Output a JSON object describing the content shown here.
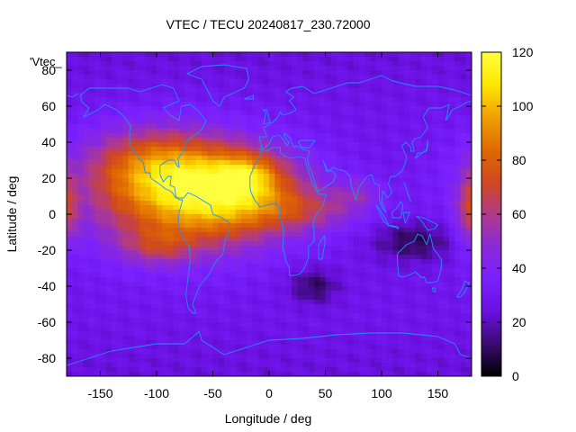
{
  "chart_data": {
    "type": "heatmap",
    "title": "VTEC / TECU 20240817_230.72000",
    "xlabel": "Longitude / deg",
    "ylabel": "Latitude / deg",
    "key_label": "'Vtec_",
    "xlim": [
      -180,
      180
    ],
    "ylim": [
      -90,
      90
    ],
    "xticks": [
      -150,
      -100,
      -50,
      0,
      50,
      100,
      150
    ],
    "yticks": [
      -80,
      -60,
      -40,
      -20,
      0,
      20,
      40,
      60,
      80
    ],
    "colorbar": {
      "range": [
        0,
        120
      ],
      "ticks": [
        0,
        20,
        40,
        60,
        80,
        100,
        120
      ],
      "colormap": [
        "#000000",
        "#3a0a70",
        "#6a10e0",
        "#7a20ff",
        "#8a2ad8",
        "#b03a88",
        "#d04820",
        "#e06a00",
        "#f0a000",
        "#ffe800",
        "#ffff40"
      ]
    },
    "grid": false,
    "coastline_color": "#1e90ff",
    "cell_deg": [
      5,
      2.5
    ],
    "features": [
      {
        "lon": -80,
        "lat": 10,
        "amp": 55,
        "sx": 60,
        "sy": 22
      },
      {
        "lon": -30,
        "lat": 12,
        "amp": 45,
        "sx": 45,
        "sy": 16
      },
      {
        "lon": -105,
        "lat": 28,
        "amp": 30,
        "sx": 40,
        "sy": 14
      },
      {
        "lon": -20,
        "lat": 22,
        "amp": 25,
        "sx": 18,
        "sy": 8
      },
      {
        "lon": -100,
        "lat": -18,
        "amp": 20,
        "sx": 22,
        "sy": 7
      },
      {
        "lon": 40,
        "lat": 2,
        "amp": 20,
        "sx": 35,
        "sy": 8
      },
      {
        "lon": 80,
        "lat": 12,
        "amp": 15,
        "sx": 15,
        "sy": 6
      },
      {
        "lon": 178,
        "lat": 2,
        "amp": 30,
        "sx": 8,
        "sy": 14
      },
      {
        "lon": 130,
        "lat": -15,
        "amp": -20,
        "sx": 25,
        "sy": 8
      },
      {
        "lon": 40,
        "lat": -40,
        "amp": -18,
        "sx": 15,
        "sy": 7
      }
    ],
    "base_value": 28
  }
}
